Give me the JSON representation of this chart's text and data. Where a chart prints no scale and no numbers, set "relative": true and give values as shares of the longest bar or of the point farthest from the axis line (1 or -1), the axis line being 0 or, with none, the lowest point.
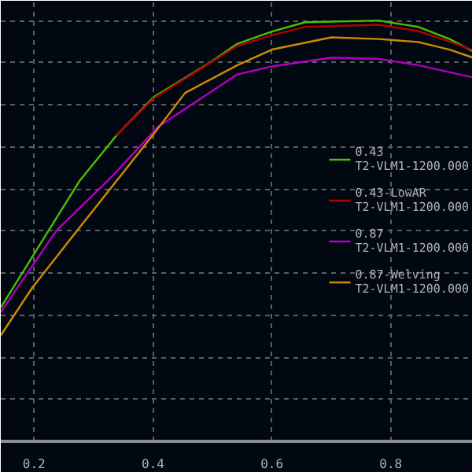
{
  "chart_data": {
    "type": "line",
    "relative": true,
    "xlim": [
      0.144,
      0.938
    ],
    "xticks": [
      0.2,
      0.4,
      0.6,
      0.8
    ],
    "grid": true,
    "legend": "right",
    "series": [
      {
        "name": "0.43\nT2-VLM1-1200.000",
        "color": "#4cc000",
        "x": [
          0.144,
          0.224,
          0.277,
          0.338,
          0.401,
          0.497,
          0.542,
          0.6,
          0.656,
          0.78,
          0.846,
          0.899,
          0.938
        ],
        "values": [
          0.318,
          0.5,
          0.62,
          0.726,
          0.818,
          0.901,
          0.945,
          0.974,
          0.996,
          1,
          0.985,
          0.956,
          0.927
        ]
      },
      {
        "name": "0.43-LowAR\nT2-VLM1-1200.000",
        "color": "#b00000",
        "x": [
          0.338,
          0.401,
          0.497,
          0.542,
          0.6,
          0.656,
          0.78,
          0.846,
          0.899,
          0.938
        ],
        "values": [
          0.726,
          0.815,
          0.9,
          0.94,
          0.965,
          0.985,
          0.99,
          0.975,
          0.95,
          0.93
        ]
      },
      {
        "name": "0.87\nT2-VLM1-1200.000",
        "color": "#b000c0",
        "x": [
          0.144,
          0.237,
          0.33,
          0.409,
          0.542,
          0.6,
          0.7,
          0.78,
          0.846,
          0.938
        ],
        "values": [
          0.307,
          0.5,
          0.628,
          0.748,
          0.872,
          0.891,
          0.912,
          0.909,
          0.894,
          0.865
        ]
      },
      {
        "name": "0.87-Welving\nT2-VLM1-1200.000",
        "color": "#d08a00",
        "x": [
          0.144,
          0.197,
          0.272,
          0.401,
          0.454,
          0.542,
          0.6,
          0.7,
          0.78,
          0.846,
          0.899,
          0.938
        ],
        "values": [
          0.252,
          0.365,
          0.5,
          0.73,
          0.828,
          0.894,
          0.931,
          0.96,
          0.956,
          0.949,
          0.931,
          0.912
        ]
      }
    ]
  }
}
